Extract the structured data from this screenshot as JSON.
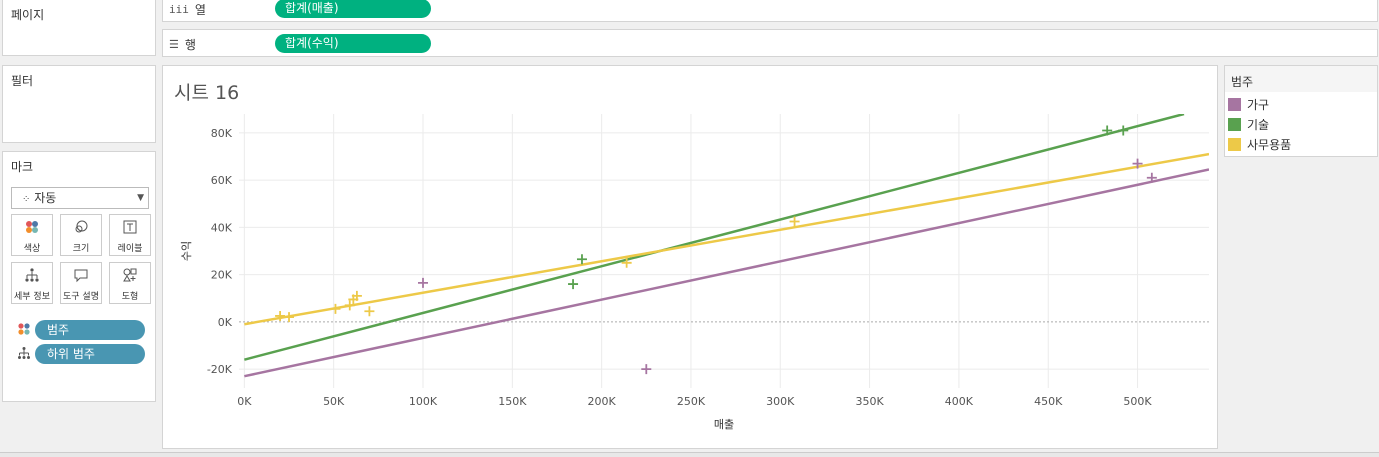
{
  "shelves": {
    "pages_label": "페이지",
    "filters_label": "필터",
    "columns": {
      "label": "열",
      "icon": "columns-icon",
      "pill": "합계(매출)"
    },
    "rows": {
      "label": "행",
      "icon": "rows-icon",
      "pill": "합계(수익)"
    }
  },
  "marks": {
    "title": "마크",
    "type": "자동",
    "buttons": [
      {
        "label": "색상",
        "icon": "color-icon"
      },
      {
        "label": "크기",
        "icon": "size-icon"
      },
      {
        "label": "레이블",
        "icon": "label-icon"
      },
      {
        "label": "세부 정보",
        "icon": "detail-icon"
      },
      {
        "label": "도구 설명",
        "icon": "tooltip-icon"
      },
      {
        "label": "도형",
        "icon": "shape-icon"
      }
    ],
    "fields": [
      {
        "label": "범주",
        "icon": "color-dots-icon"
      },
      {
        "label": "하위 범주",
        "icon": "detail-tree-icon"
      }
    ]
  },
  "sheet": {
    "title": "시트 16"
  },
  "legend": {
    "title": "범주",
    "items": [
      {
        "label": "가구",
        "color": "#a675a1"
      },
      {
        "label": "기술",
        "color": "#59a14f"
      },
      {
        "label": "사무용품",
        "color": "#edc948"
      }
    ]
  },
  "chart_data": {
    "type": "scatter",
    "title": "",
    "xlabel": "매출",
    "ylabel": "수익",
    "xlim": [
      -3000,
      540000
    ],
    "ylim": [
      -28000,
      88000
    ],
    "xticks": [
      0,
      50000,
      100000,
      150000,
      200000,
      250000,
      300000,
      350000,
      400000,
      450000,
      500000
    ],
    "xtick_labels": [
      "0K",
      "50K",
      "100K",
      "150K",
      "200K",
      "250K",
      "300K",
      "350K",
      "400K",
      "450K",
      "500K"
    ],
    "yticks": [
      -20000,
      0,
      20000,
      40000,
      60000,
      80000
    ],
    "ytick_labels": [
      "-20K",
      "0K",
      "20K",
      "40K",
      "60K",
      "80K"
    ],
    "grid": true,
    "marker": "plus",
    "series": [
      {
        "name": "가구",
        "color": "#a675a1",
        "points": [
          [
            100000,
            16500
          ],
          [
            225000,
            -20000
          ],
          [
            500000,
            67000
          ],
          [
            508000,
            61000
          ]
        ],
        "trend": [
          [
            0,
            -23000
          ],
          [
            540000,
            64500
          ]
        ]
      },
      {
        "name": "기술",
        "color": "#59a14f",
        "points": [
          [
            184000,
            16000
          ],
          [
            189000,
            26500
          ],
          [
            483000,
            81000
          ],
          [
            492000,
            81000
          ]
        ],
        "trend": [
          [
            0,
            -16000
          ],
          [
            526000,
            88000
          ]
        ]
      },
      {
        "name": "사무용품",
        "color": "#edc948",
        "points": [
          [
            20000,
            2500
          ],
          [
            25000,
            2000
          ],
          [
            51000,
            5500
          ],
          [
            59000,
            7000
          ],
          [
            61000,
            9500
          ],
          [
            63000,
            11000
          ],
          [
            70000,
            4500
          ],
          [
            214000,
            25000
          ],
          [
            308000,
            42500
          ]
        ],
        "trend": [
          [
            0,
            -1000
          ],
          [
            540000,
            71000
          ]
        ]
      }
    ]
  }
}
